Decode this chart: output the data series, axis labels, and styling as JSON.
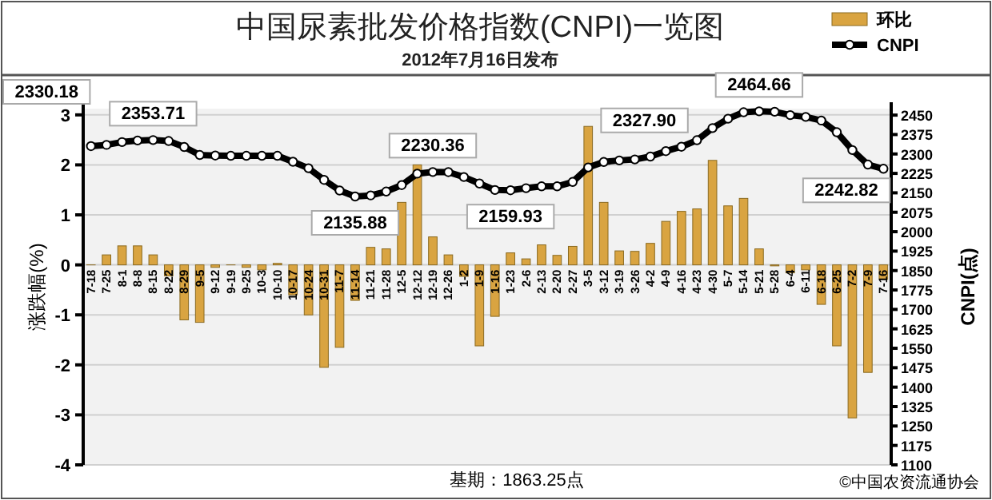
{
  "chart_data": {
    "type": "bar",
    "title": "中国尿素批发价格指数(CNPI)一览图",
    "subtitle": "2012年7月16日发布",
    "ylabel": "涨跌幅(%)",
    "y2label": "CNPI(点)",
    "categories": [
      "7-18",
      "7-25",
      "8-1",
      "8-8",
      "8-15",
      "8-22",
      "8-29",
      "9-5",
      "9-12",
      "9-19",
      "9-25",
      "10-3",
      "10-10",
      "10-17",
      "10-24",
      "10-31",
      "11-7",
      "11-14",
      "11-21",
      "11-28",
      "12-5",
      "12-12",
      "12-19",
      "12-26",
      "1-2",
      "1-9",
      "1-16",
      "1-23",
      "2-6",
      "2-13",
      "2-20",
      "2-27",
      "3-5",
      "3-12",
      "3-19",
      "3-26",
      "4-2",
      "4-9",
      "4-16",
      "4-23",
      "4-30",
      "5-7",
      "5-14",
      "5-21",
      "5-28",
      "6-4",
      "6-11",
      "6-18",
      "6-25",
      "7-2",
      "7-9",
      "7-16"
    ],
    "series": [
      {
        "name": "环比",
        "color": "#d9a441",
        "values": [
          0,
          0.2,
          0.38,
          0.38,
          0.2,
          -0.22,
          -1.1,
          -1.15,
          -0.05,
          0,
          -0.05,
          -0.1,
          0.03,
          -0.6,
          -1.0,
          -2.05,
          -1.65,
          -0.71,
          0.35,
          0.32,
          1.25,
          2.0,
          0.56,
          0.2,
          -0.23,
          -1.62,
          -1.03,
          0.24,
          0.12,
          0.4,
          0.19,
          0.37,
          2.77,
          1.25,
          0.28,
          0.27,
          0.43,
          0.87,
          1.07,
          1.12,
          2.09,
          1.18,
          1.33,
          0.32,
          -0.02,
          -0.16,
          -0.1,
          -0.79,
          -1.62,
          -3.06,
          -2.15,
          -0.29
        ]
      },
      {
        "name": "CNPI",
        "type": "line",
        "axis": "y2",
        "color": "#000000",
        "marker": "circle",
        "values": [
          2330.18,
          2335,
          2346,
          2352,
          2353.71,
          2350,
          2327,
          2296,
          2294,
          2293,
          2293,
          2293,
          2293,
          2270,
          2245,
          2200,
          2159,
          2135.88,
          2140,
          2155,
          2180,
          2224,
          2230.36,
          2230,
          2211,
          2186,
          2161,
          2159.93,
          2168,
          2175,
          2175,
          2192,
          2248,
          2269,
          2275,
          2279,
          2290,
          2311,
          2327.9,
          2353,
          2400,
          2436,
          2461,
          2464.66,
          2463,
          2450,
          2443,
          2429,
          2384,
          2315,
          2259,
          2242.82
        ],
        "value_labels": [
          "2330.18",
          null,
          null,
          null,
          "2353.71",
          null,
          null,
          null,
          null,
          null,
          null,
          null,
          null,
          null,
          null,
          null,
          null,
          "2135.88",
          null,
          null,
          null,
          null,
          "2230.36",
          null,
          null,
          null,
          null,
          "2159.93",
          null,
          null,
          null,
          null,
          null,
          null,
          null,
          null,
          null,
          null,
          "2327.90",
          null,
          null,
          null,
          null,
          "2464.66",
          null,
          null,
          null,
          null,
          null,
          null,
          null,
          "2242.82"
        ]
      }
    ],
    "ylim": [
      -4,
      3.125
    ],
    "yticks": [
      -4,
      -3,
      -2,
      -1,
      0,
      1,
      2,
      3
    ],
    "y2lim": [
      1100,
      2475
    ],
    "y2ticks": [
      1100,
      1175,
      1250,
      1325,
      1400,
      1475,
      1550,
      1625,
      1700,
      1775,
      1850,
      1925,
      2000,
      2075,
      2150,
      2225,
      2300,
      2375,
      2450
    ],
    "grid": "y",
    "legend": "top right",
    "annotations": [
      "基期：1863.25点",
      "©中国农资流通协会"
    ]
  }
}
